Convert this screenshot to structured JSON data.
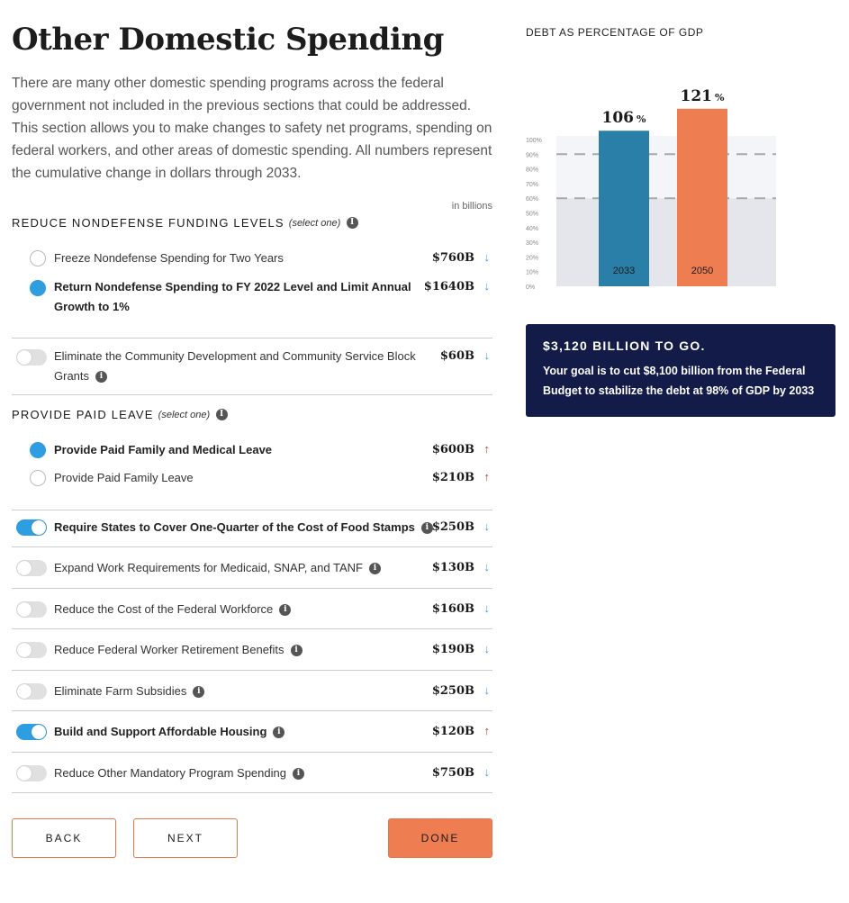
{
  "page": {
    "title": "Other Domestic Spending",
    "intro": "There are many other domestic spending programs across the federal government not included in the previous sections that could be addressed. This section allows you to make changes to safety net programs, spending on federal workers, and other areas of domestic spending. All numbers represent the cumulative change in dollars through 2033.",
    "units": "in billions"
  },
  "sections": {
    "nondefense": {
      "title": "Reduce Nondefense Funding Levels",
      "select_note": "(select one)",
      "options": [
        {
          "label": "Freeze Nondefense Spending for Two Years",
          "amount": "$760B",
          "direction": "down",
          "selected": false
        },
        {
          "label": "Return Nondefense Spending to FY 2022 Level and Limit Annual",
          "label2": "Growth to 1%",
          "amount": "$1640B",
          "direction": "down",
          "selected": true
        }
      ]
    },
    "block_grants": {
      "label": "Eliminate the Community Development and Community Service Block",
      "label2": "Grants",
      "amount": "$60B",
      "direction": "down",
      "on": false
    },
    "paid_leave": {
      "title": "Provide Paid Leave",
      "select_note": "(select one)",
      "options": [
        {
          "label": "Provide Paid Family and Medical Leave",
          "amount": "$600B",
          "direction": "up",
          "selected": true
        },
        {
          "label": "Provide Paid Family Leave",
          "amount": "$210B",
          "direction": "up",
          "selected": false
        }
      ]
    },
    "toggles": [
      {
        "label": "Require States to Cover One-Quarter of the Cost of Food Stamps",
        "amount": "$250B",
        "direction": "down",
        "on": true
      },
      {
        "label": "Expand Work Requirements for Medicaid, SNAP, and TANF",
        "amount": "$130B",
        "direction": "down",
        "on": false
      },
      {
        "label": "Reduce the Cost of the Federal Workforce",
        "amount": "$160B",
        "direction": "down",
        "on": false
      },
      {
        "label": "Reduce Federal Worker Retirement Benefits",
        "amount": "$190B",
        "direction": "down",
        "on": false
      },
      {
        "label": "Eliminate Farm Subsidies",
        "amount": "$250B",
        "direction": "down",
        "on": false
      },
      {
        "label": "Build and Support Affordable Housing",
        "amount": "$120B",
        "direction": "up",
        "on": true
      },
      {
        "label": "Reduce Other Mandatory Program Spending",
        "amount": "$750B",
        "direction": "down",
        "on": false
      }
    ]
  },
  "buttons": {
    "back": "BACK",
    "next": "NEXT",
    "done": "DONE"
  },
  "icons": {
    "info": "info-icon",
    "arrow_down": "arrow-down-icon",
    "arrow_up": "arrow-up-icon"
  },
  "colors": {
    "blue": "#2e9ee0",
    "orange": "#ef7d52",
    "navy": "#131b48",
    "bar_2033": "#2a7fa8",
    "bar_2050": "#ef7d52"
  },
  "chart_data": {
    "type": "bar",
    "title": "Debt as Percentage of GDP",
    "categories": [
      "2033",
      "2050"
    ],
    "values": [
      106,
      121
    ],
    "value_labels": [
      "106",
      "121"
    ],
    "value_suffix": "%",
    "ylim": [
      0,
      100
    ],
    "yticks": [
      "0%",
      "10%",
      "20%",
      "30%",
      "40%",
      "50%",
      "60%",
      "70%",
      "80%",
      "90%",
      "100%"
    ],
    "reference_lines": [
      60,
      90
    ],
    "bar_colors": [
      "#2a7fa8",
      "#ef7d52"
    ]
  },
  "goal": {
    "title": "$3,120 BILLION TO GO.",
    "text": "Your goal is to cut $8,100 billion from the Federal Budget to stabilize the debt at 98% of GDP by 2033"
  }
}
